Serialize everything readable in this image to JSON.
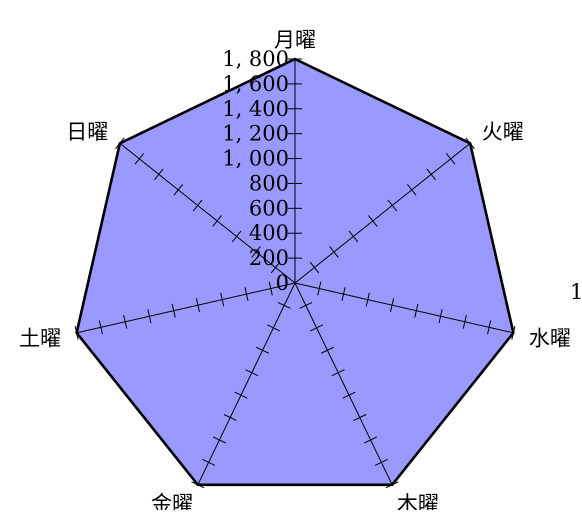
{
  "chart_data": {
    "type": "radar",
    "categories": [
      "月曜",
      "火曜",
      "水曜",
      "木曜",
      "金曜",
      "土曜",
      "日曜"
    ],
    "series": [
      {
        "name": "1",
        "values": [
          1800,
          1800,
          1800,
          1800,
          1800,
          1800,
          1800
        ]
      }
    ],
    "rlim": [
      0,
      1800
    ],
    "tick_step": 200,
    "tick_labels": [
      "0",
      "200",
      "400",
      "600",
      "800",
      "1, 000",
      "1, 200",
      "1, 400",
      "1, 600",
      "1, 800"
    ],
    "grid": false,
    "legend_position": "right",
    "colors": {
      "fill": "#9999ff",
      "outline": "#000000",
      "axis": "#000000"
    }
  }
}
